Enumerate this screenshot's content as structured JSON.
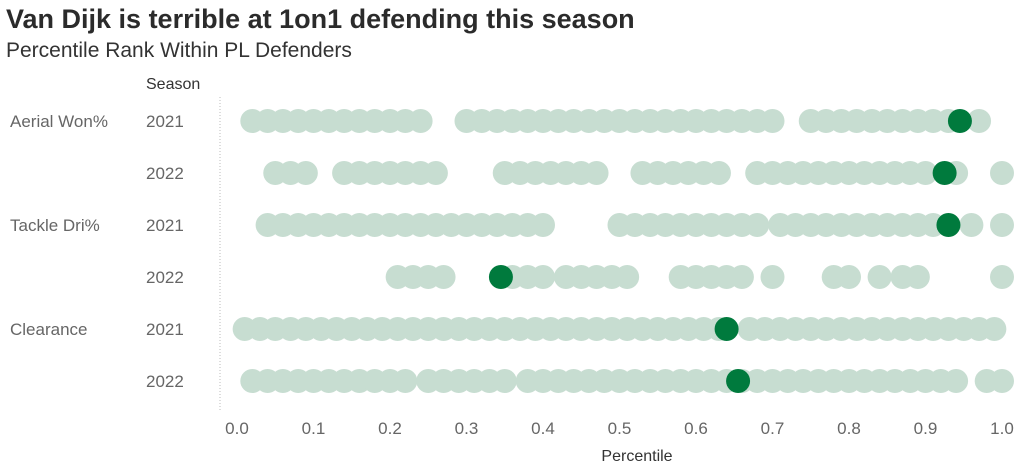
{
  "title": "Van Dijk is terrible at 1on1 defending this season",
  "subtitle": "Percentile Rank Within PL Defenders",
  "chart_data": {
    "type": "scatter",
    "row_header": "Season",
    "xlabel": "Percentile",
    "xlim": [
      0.0,
      1.0
    ],
    "x_ticks": [
      "0.0",
      "0.1",
      "0.2",
      "0.3",
      "0.4",
      "0.5",
      "0.6",
      "0.7",
      "0.8",
      "0.9",
      "1.0"
    ],
    "colors": {
      "others": "#c7ddd1",
      "highlight": "#007a3d"
    },
    "metrics": [
      {
        "name": "Aerial Won%",
        "seasons": [
          {
            "season": "2021",
            "highlight": 0.945,
            "others": [
              0.02,
              0.04,
              0.06,
              0.08,
              0.1,
              0.12,
              0.14,
              0.16,
              0.18,
              0.2,
              0.22,
              0.24,
              0.3,
              0.32,
              0.34,
              0.36,
              0.38,
              0.4,
              0.42,
              0.44,
              0.46,
              0.48,
              0.5,
              0.52,
              0.54,
              0.56,
              0.58,
              0.6,
              0.62,
              0.64,
              0.66,
              0.68,
              0.7,
              0.75,
              0.77,
              0.79,
              0.81,
              0.83,
              0.85,
              0.87,
              0.89,
              0.91,
              0.93,
              0.97
            ]
          }
        ]
      },
      {
        "name": "",
        "seasons": [
          {
            "season": "2022",
            "highlight": 0.925,
            "others": [
              0.05,
              0.07,
              0.09,
              0.14,
              0.16,
              0.18,
              0.2,
              0.22,
              0.24,
              0.26,
              0.35,
              0.37,
              0.39,
              0.41,
              0.43,
              0.45,
              0.47,
              0.53,
              0.55,
              0.57,
              0.59,
              0.61,
              0.63,
              0.68,
              0.7,
              0.72,
              0.74,
              0.76,
              0.78,
              0.8,
              0.82,
              0.84,
              0.86,
              0.88,
              0.9,
              0.94,
              1.0
            ]
          }
        ]
      },
      {
        "name": "Tackle Dri%",
        "seasons": [
          {
            "season": "2021",
            "highlight": 0.93,
            "others": [
              0.04,
              0.06,
              0.08,
              0.1,
              0.12,
              0.14,
              0.16,
              0.18,
              0.2,
              0.22,
              0.24,
              0.26,
              0.28,
              0.3,
              0.32,
              0.34,
              0.36,
              0.38,
              0.4,
              0.5,
              0.52,
              0.54,
              0.56,
              0.58,
              0.6,
              0.62,
              0.64,
              0.66,
              0.68,
              0.71,
              0.73,
              0.75,
              0.77,
              0.79,
              0.81,
              0.83,
              0.85,
              0.87,
              0.89,
              0.91,
              0.96,
              1.0
            ]
          }
        ]
      },
      {
        "name": "",
        "seasons": [
          {
            "season": "2022",
            "highlight": 0.345,
            "others": [
              0.21,
              0.23,
              0.25,
              0.27,
              0.36,
              0.38,
              0.4,
              0.43,
              0.45,
              0.47,
              0.49,
              0.51,
              0.58,
              0.6,
              0.62,
              0.64,
              0.66,
              0.7,
              0.78,
              0.8,
              0.84,
              0.87,
              0.89,
              1.0
            ]
          }
        ]
      },
      {
        "name": "Clearance",
        "seasons": [
          {
            "season": "2021",
            "highlight": 0.64,
            "others": [
              0.01,
              0.03,
              0.05,
              0.07,
              0.09,
              0.11,
              0.13,
              0.15,
              0.17,
              0.19,
              0.21,
              0.23,
              0.25,
              0.27,
              0.29,
              0.31,
              0.33,
              0.35,
              0.37,
              0.39,
              0.41,
              0.43,
              0.45,
              0.47,
              0.49,
              0.51,
              0.53,
              0.55,
              0.57,
              0.59,
              0.61,
              0.63,
              0.67,
              0.69,
              0.71,
              0.73,
              0.75,
              0.77,
              0.79,
              0.81,
              0.83,
              0.85,
              0.87,
              0.89,
              0.91,
              0.93,
              0.95,
              0.97,
              0.99
            ]
          }
        ]
      },
      {
        "name": "",
        "seasons": [
          {
            "season": "2022",
            "highlight": 0.655,
            "others": [
              0.02,
              0.04,
              0.06,
              0.08,
              0.1,
              0.12,
              0.14,
              0.16,
              0.18,
              0.2,
              0.22,
              0.25,
              0.27,
              0.29,
              0.31,
              0.33,
              0.35,
              0.38,
              0.4,
              0.42,
              0.44,
              0.46,
              0.48,
              0.5,
              0.52,
              0.54,
              0.56,
              0.58,
              0.6,
              0.62,
              0.64,
              0.66,
              0.68,
              0.7,
              0.72,
              0.74,
              0.76,
              0.78,
              0.8,
              0.82,
              0.84,
              0.86,
              0.88,
              0.9,
              0.92,
              0.94,
              0.98,
              1.0
            ]
          }
        ]
      }
    ]
  }
}
